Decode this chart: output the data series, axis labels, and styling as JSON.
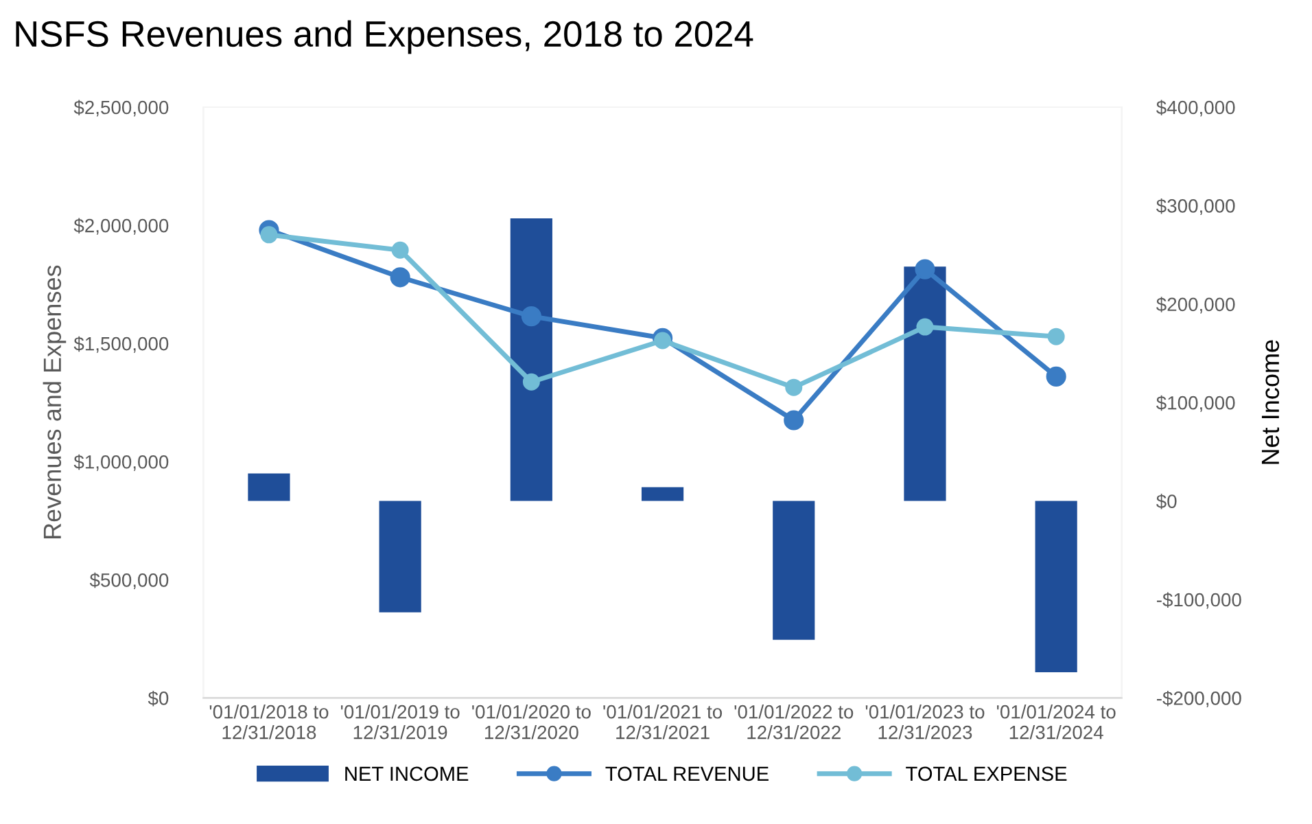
{
  "chart_data": {
    "type": "line",
    "title": "NSFS Revenues and Expenses, 2018 to 2024",
    "ylabel": "Revenues and Expenses",
    "y2label": "Net Income",
    "categories": [
      "'01/01/2018 to\n12/31/2018",
      "'01/01/2019 to\n12/31/2019",
      "'01/01/2020 to\n12/31/2020",
      "'01/01/2021 to\n12/31/2021",
      "'01/01/2022 to\n12/31/2022",
      "'01/01/2023 to\n12/31/2023",
      "'01/01/2024 to\n12/31/2024"
    ],
    "series": [
      {
        "name": "NET INCOME",
        "type": "bar",
        "axis": "y2",
        "color": "#1f4e99",
        "values": [
          28000,
          -113000,
          287000,
          14000,
          -141000,
          238000,
          -174000
        ]
      },
      {
        "name": "TOTAL REVENUE",
        "color": "#3a7cc4",
        "values": [
          1980000,
          1780000,
          1615000,
          1523000,
          1175000,
          1814000,
          1360000
        ]
      },
      {
        "name": "TOTAL EXPENSE",
        "color": "#72bdd6",
        "values": [
          1960000,
          1895000,
          1337000,
          1512000,
          1314000,
          1570000,
          1529000
        ]
      }
    ],
    "ylim": [
      0,
      2500000
    ],
    "yticks": [
      {
        "value": 0,
        "label": "$0"
      },
      {
        "value": 500000,
        "label": "$500,000"
      },
      {
        "value": 1000000,
        "label": "$1,000,000"
      },
      {
        "value": 1500000,
        "label": "$1,500,000"
      },
      {
        "value": 2000000,
        "label": "$2,000,000"
      },
      {
        "value": 2500000,
        "label": "$2,500,000"
      }
    ],
    "y2lim": [
      -200000,
      400000
    ],
    "y2ticks": [
      {
        "value": -200000,
        "label": "-$200,000"
      },
      {
        "value": -100000,
        "label": "-$100,000"
      },
      {
        "value": 0,
        "label": "$0"
      },
      {
        "value": 100000,
        "label": "$100,000"
      },
      {
        "value": 200000,
        "label": "$200,000"
      },
      {
        "value": 300000,
        "label": "$300,000"
      },
      {
        "value": 400000,
        "label": "$400,000"
      }
    ],
    "marker": "circle",
    "line_style": "solid",
    "legend": "bottom",
    "grid": false
  }
}
